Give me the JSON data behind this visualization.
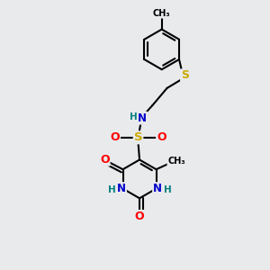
{
  "bg_color": "#e8eaec",
  "atom_colors": {
    "C": "#000000",
    "N": "#0000cc",
    "O": "#ff0000",
    "S": "#ccaa00",
    "H": "#008080"
  },
  "bond_color": "#000000",
  "bond_width": 1.5,
  "dbo": 0.06
}
